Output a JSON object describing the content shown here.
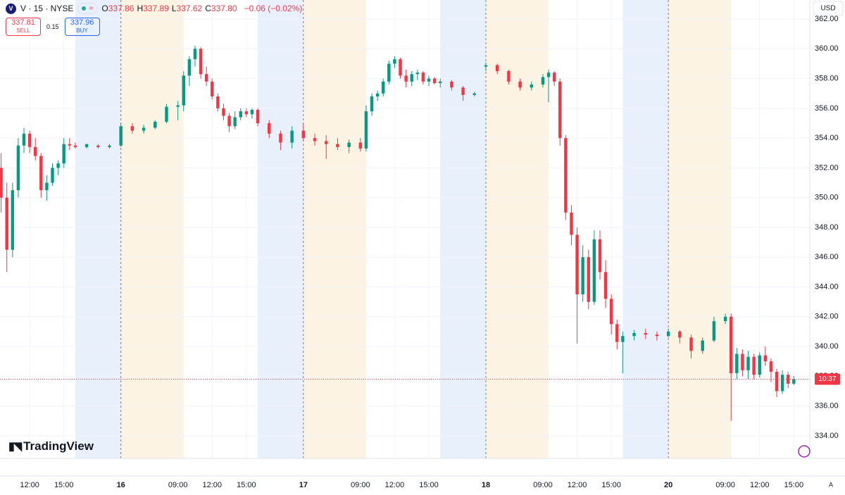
{
  "header": {
    "logo": "V",
    "symbol": "V · 15 · NYSE",
    "badge": "≈",
    "ohlc": [
      {
        "key": "O",
        "value": "337.86"
      },
      {
        "key": "H",
        "value": "337.89"
      },
      {
        "key": "L",
        "value": "337.62"
      },
      {
        "key": "C",
        "value": "337.80"
      }
    ],
    "change": "−0.06 (−0.02%)",
    "sell": {
      "price": "337.81",
      "label": "SELL"
    },
    "spread": "0.15",
    "buy": {
      "price": "337.96",
      "label": "BUY"
    },
    "currency": "USD",
    "brand": "TradingView",
    "scale_mode": "A"
  },
  "chart_data": {
    "type": "candlestick",
    "up_color": "#089981",
    "down_color": "#f23645",
    "pre_market_color": "#fdf3e3",
    "post_market_color": "#e8f0fc",
    "pre_market": [
      [
        0,
        5.5
      ],
      [
        16,
        21.5
      ],
      [
        32,
        37.5
      ],
      [
        48,
        53.5
      ]
    ],
    "post_market": [
      [
        -4,
        0
      ],
      [
        12,
        16
      ],
      [
        28,
        32
      ],
      [
        44,
        48
      ]
    ],
    "day_breaks": [
      0,
      16,
      32,
      48
    ],
    "price_line": {
      "value": 337.8,
      "label": "10:37",
      "color": "#f23645"
    },
    "xlim": [
      -10.6,
      60.4
    ],
    "ylim": [
      332.48,
      363.28
    ],
    "grid": true,
    "xticks": [
      {
        "value": -8,
        "label": "12:00"
      },
      {
        "value": -5,
        "label": "15:00"
      },
      {
        "value": 0,
        "label": "16"
      },
      {
        "value": 5,
        "label": "09:00"
      },
      {
        "value": 8,
        "label": "12:00"
      },
      {
        "value": 11,
        "label": "15:00"
      },
      {
        "value": 16,
        "label": "17"
      },
      {
        "value": 21,
        "label": "09:00"
      },
      {
        "value": 24,
        "label": "12:00"
      },
      {
        "value": 27,
        "label": "15:00"
      },
      {
        "value": 32,
        "label": "18"
      },
      {
        "value": 37,
        "label": "09:00"
      },
      {
        "value": 40,
        "label": "12:00"
      },
      {
        "value": 43,
        "label": "15:00"
      },
      {
        "value": 48,
        "label": "20"
      },
      {
        "value": 53,
        "label": "09:00"
      },
      {
        "value": 56,
        "label": "12:00"
      },
      {
        "value": 59,
        "label": "15:00"
      }
    ],
    "yticks": [
      {
        "value": 334,
        "label": "334.00"
      },
      {
        "value": 336,
        "label": "336.00"
      },
      {
        "value": 338,
        "label": "338.00"
      },
      {
        "value": 340,
        "label": "340.00"
      },
      {
        "value": 342,
        "label": "342.00"
      },
      {
        "value": 344,
        "label": "344.00"
      },
      {
        "value": 346,
        "label": "346.00"
      },
      {
        "value": 348,
        "label": "348.00"
      },
      {
        "value": 350,
        "label": "350.00"
      },
      {
        "value": 352,
        "label": "352.00"
      },
      {
        "value": 354,
        "label": "354.00"
      },
      {
        "value": 356,
        "label": "356.00"
      },
      {
        "value": 358,
        "label": "358.00"
      },
      {
        "value": 360,
        "label": "360.00"
      },
      {
        "value": 362,
        "label": "362.00"
      }
    ],
    "x": [
      -10.5,
      -10,
      -9.5,
      -9,
      -8.5,
      -8,
      -7.5,
      -7,
      -6.5,
      -6,
      -5.5,
      -5,
      -4.5,
      -4,
      -3,
      -2,
      -1,
      0,
      1,
      2,
      3,
      4,
      5,
      5.5,
      6,
      6.5,
      7,
      7.5,
      8,
      8.5,
      9,
      9.5,
      10,
      10.5,
      11,
      11.5,
      12,
      13,
      14,
      15,
      16,
      17,
      18,
      19,
      20,
      21,
      21.5,
      22,
      22.5,
      23,
      23.5,
      24,
      24.5,
      25,
      25.5,
      26,
      26.5,
      27,
      27.5,
      28,
      29,
      30,
      31,
      32,
      33,
      34,
      35,
      36,
      37,
      37.5,
      38,
      38.5,
      39,
      39.5,
      40,
      40.5,
      41,
      41.5,
      42,
      42.5,
      43,
      43.5,
      44,
      45,
      46,
      47,
      48,
      49,
      50,
      51,
      52,
      53,
      53.5,
      54,
      54.5,
      55,
      55.5,
      56,
      56.5,
      57,
      57.5,
      58,
      58.5,
      59
    ],
    "open": [
      352,
      350,
      346.5,
      350.5,
      353.5,
      354.3,
      353.4,
      352.8,
      350.5,
      351,
      352,
      352.3,
      353.6,
      353.5,
      353.4,
      353.5,
      353.4,
      353.5,
      354.8,
      354.5,
      354.7,
      355.1,
      356.1,
      356.2,
      358.2,
      359.3,
      360,
      358.3,
      357.8,
      356.8,
      356,
      355.5,
      354.8,
      355.4,
      355.8,
      355.6,
      355.9,
      355,
      354.3,
      353.7,
      354.5,
      354,
      353.8,
      353.6,
      353.4,
      353.7,
      353.3,
      355.8,
      356.8,
      357,
      357.8,
      359,
      359.3,
      358.2,
      357.8,
      358.3,
      358.4,
      357.8,
      358,
      357.7,
      357.8,
      357.4,
      356.9,
      358.8,
      358.9,
      358.5,
      357.8,
      357.4,
      357.6,
      358.1,
      358.4,
      357.8,
      354,
      349,
      347.5,
      343.5,
      346,
      343,
      347.2,
      345,
      343.2,
      341.5,
      340.3,
      340.7,
      340.9,
      340.8,
      340.7,
      341,
      340.6,
      339.7,
      340.4,
      341.7,
      342,
      338.2,
      339.5,
      338.4,
      339.3,
      338.1,
      339.4,
      339,
      338.3,
      337,
      338.1,
      337.5
    ],
    "high": [
      353,
      351,
      351,
      354,
      354.7,
      354.5,
      354,
      353,
      351.5,
      352.3,
      352.5,
      354,
      354,
      353.7,
      353.6,
      353.6,
      353.6,
      355,
      355,
      354.9,
      355.2,
      356.3,
      356.5,
      358.5,
      359.5,
      360.2,
      360.1,
      358.8,
      358,
      357,
      356.3,
      355.7,
      355.8,
      356,
      356,
      356,
      356,
      355.2,
      354.5,
      354.8,
      355,
      354.3,
      354.2,
      354,
      353.9,
      354,
      356.2,
      357,
      357.2,
      358,
      359.2,
      359.5,
      359.4,
      358.6,
      358.5,
      358.6,
      358.5,
      358.2,
      358.1,
      358,
      357.9,
      357.5,
      357.1,
      359.1,
      359,
      358.6,
      358,
      357.8,
      358.3,
      358.6,
      358.5,
      358,
      354.2,
      349.5,
      348,
      346.8,
      346.5,
      347.8,
      347.8,
      345.8,
      343.5,
      341.8,
      341,
      341.1,
      341.2,
      341,
      341.2,
      341.1,
      340.8,
      340.6,
      342,
      342.2,
      342.2,
      339.9,
      339.8,
      339.7,
      339.5,
      339.6,
      340,
      339.2,
      338.5,
      338.4,
      338.3,
      338
    ],
    "low": [
      349,
      345,
      346,
      350,
      353,
      353,
      352.5,
      350,
      349.8,
      350.8,
      351.5,
      352,
      353.2,
      353.3,
      353.3,
      353.3,
      353.3,
      353.4,
      354.3,
      354.3,
      354.6,
      355,
      355.2,
      355.8,
      357.5,
      358.8,
      358,
      357.5,
      356.6,
      355.8,
      355.2,
      354.4,
      354.6,
      355.2,
      355.4,
      355.3,
      354.8,
      354,
      353.2,
      353.3,
      353.8,
      353.5,
      352.6,
      353.2,
      353,
      353.1,
      353.1,
      355.5,
      356.5,
      356.8,
      357.6,
      358.7,
      358,
      357.4,
      357.5,
      357.9,
      357.6,
      357.5,
      357.6,
      357.4,
      357.2,
      356.5,
      356.8,
      358.5,
      358.3,
      357.6,
      357.2,
      357.2,
      357.4,
      356.4,
      357.5,
      353.5,
      348.5,
      346.8,
      340.2,
      343,
      342.5,
      342.8,
      344.5,
      342.6,
      340.8,
      339.8,
      338.2,
      340.4,
      340.5,
      340.4,
      340.6,
      340.2,
      339.2,
      339.5,
      340.3,
      341.5,
      335,
      337.8,
      338,
      337.8,
      337.8,
      337.9,
      338.7,
      337.6,
      336.6,
      336.8,
      337.2,
      337.4
    ],
    "close": [
      350,
      346.5,
      350.5,
      353.5,
      354.3,
      353.4,
      352.8,
      350.5,
      351,
      352,
      352.3,
      353.6,
      353.5,
      353.4,
      353.6,
      353.4,
      353.5,
      354.8,
      354.5,
      354.7,
      355.1,
      356.1,
      356.2,
      358.2,
      359.3,
      360,
      358.3,
      357.8,
      356.8,
      356,
      355.5,
      354.8,
      355.4,
      355.8,
      355.6,
      355.9,
      355,
      354.3,
      353.7,
      354.5,
      354,
      353.8,
      353.6,
      353.4,
      353.7,
      353.3,
      355.8,
      356.8,
      357,
      357.8,
      359,
      359.3,
      358.2,
      357.8,
      358.3,
      358.4,
      357.8,
      358,
      357.7,
      357.8,
      357.4,
      356.9,
      357,
      358.9,
      358.5,
      357.8,
      357.4,
      357.6,
      358.1,
      358.4,
      357.8,
      354,
      349,
      347.5,
      343.5,
      346,
      343,
      347.2,
      345,
      343.2,
      341.5,
      340.3,
      340.7,
      340.9,
      340.8,
      340.7,
      341,
      340.6,
      339.7,
      340.4,
      341.7,
      342,
      338.2,
      339.5,
      338.4,
      339.3,
      338.1,
      339.4,
      339,
      338.3,
      337,
      338.1,
      337.5,
      337.8
    ]
  }
}
